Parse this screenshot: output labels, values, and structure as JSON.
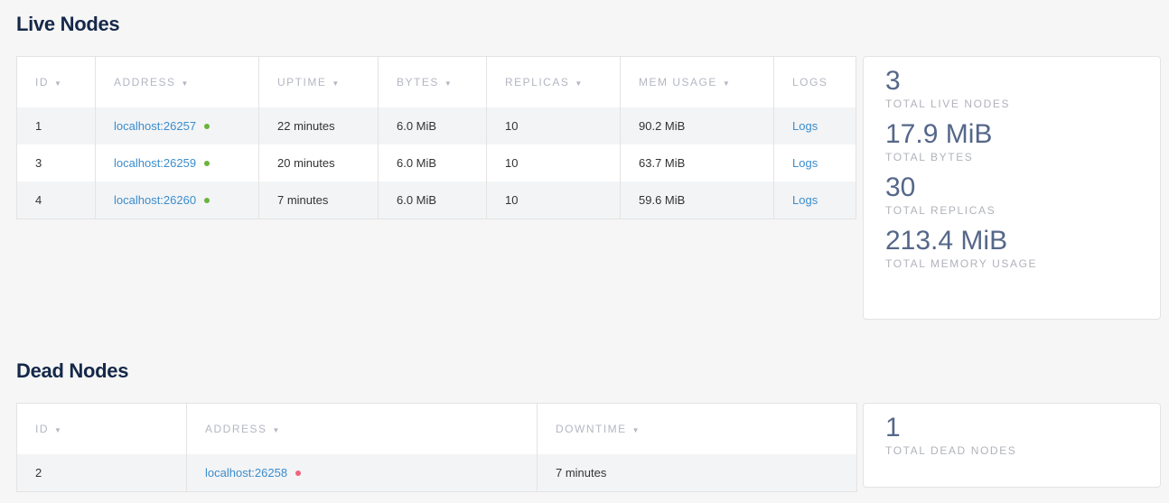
{
  "live": {
    "title": "Live Nodes",
    "columns": [
      "ID",
      "ADDRESS",
      "UPTIME",
      "BYTES",
      "REPLICAS",
      "MEM USAGE",
      "LOGS"
    ],
    "rows": [
      {
        "id": "1",
        "address": "localhost:26257",
        "uptime": "22 minutes",
        "bytes": "6.0 MiB",
        "replicas": "10",
        "mem": "90.2 MiB",
        "logs": "Logs"
      },
      {
        "id": "3",
        "address": "localhost:26259",
        "uptime": "20 minutes",
        "bytes": "6.0 MiB",
        "replicas": "10",
        "mem": "63.7 MiB",
        "logs": "Logs"
      },
      {
        "id": "4",
        "address": "localhost:26260",
        "uptime": "7 minutes",
        "bytes": "6.0 MiB",
        "replicas": "10",
        "mem": "59.6 MiB",
        "logs": "Logs"
      }
    ],
    "status_color": "#6bb33d",
    "summary": [
      {
        "value": "3",
        "label": "TOTAL LIVE NODES"
      },
      {
        "value": "17.9 MiB",
        "label": "TOTAL BYTES"
      },
      {
        "value": "30",
        "label": "TOTAL REPLICAS"
      },
      {
        "value": "213.4 MiB",
        "label": "TOTAL MEMORY USAGE"
      }
    ]
  },
  "dead": {
    "title": "Dead Nodes",
    "columns": [
      "ID",
      "ADDRESS",
      "DOWNTIME"
    ],
    "rows": [
      {
        "id": "2",
        "address": "localhost:26258",
        "downtime": "7 minutes"
      }
    ],
    "status_color": "#f0637c",
    "summary": [
      {
        "value": "1",
        "label": "TOTAL DEAD NODES"
      }
    ]
  },
  "sort_arrow": "▼"
}
